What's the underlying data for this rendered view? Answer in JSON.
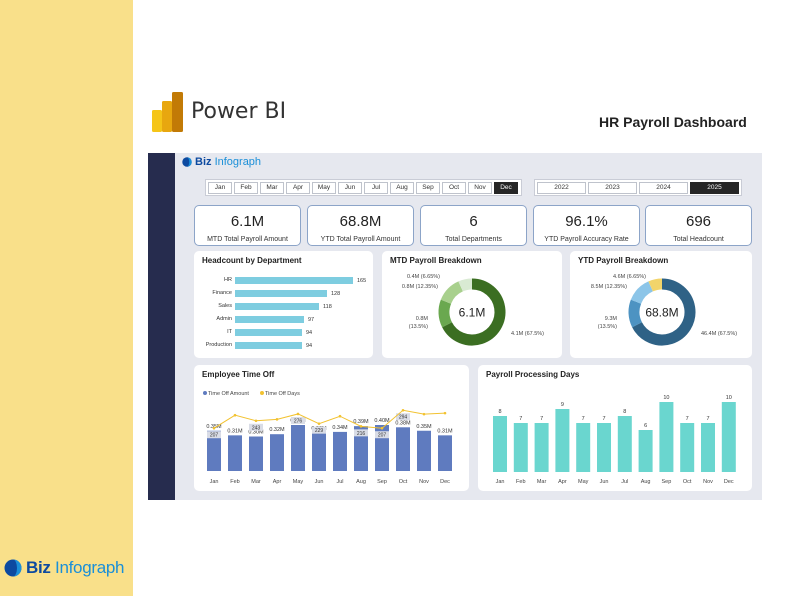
{
  "header": {
    "app_name": "Power BI",
    "dashboard_title": "HR Payroll Dashboard"
  },
  "brand": {
    "word1": "Biz",
    "word2": "Infograph"
  },
  "months": [
    "Jan",
    "Feb",
    "Mar",
    "Apr",
    "May",
    "Jun",
    "Jul",
    "Aug",
    "Sep",
    "Oct",
    "Nov",
    "Dec"
  ],
  "selected_month": "Dec",
  "years": [
    "2022",
    "2023",
    "2024",
    "2025"
  ],
  "selected_year": "2025",
  "kpis": [
    {
      "value": "6.1M",
      "label": "MTD Total Payroll Amount"
    },
    {
      "value": "68.8M",
      "label": "YTD Total Payroll Amount"
    },
    {
      "value": "6",
      "label": "Total Departments"
    },
    {
      "value": "96.1%",
      "label": "YTD Payroll Accuracy Rate"
    },
    {
      "value": "696",
      "label": "Total Headcount"
    }
  ],
  "headcount": {
    "title": "Headcount by Department",
    "items": [
      {
        "dept": "HR",
        "value": 165
      },
      {
        "dept": "Finance",
        "value": 128
      },
      {
        "dept": "Sales",
        "value": 118
      },
      {
        "dept": "Admin",
        "value": 97
      },
      {
        "dept": "IT",
        "value": 94
      },
      {
        "dept": "Production",
        "value": 94
      }
    ]
  },
  "mtd": {
    "title": "MTD Payroll Breakdown",
    "center": "6.1M",
    "labels": [
      "0.4M (6.65%)",
      "0.8M (12.35%)",
      "0.8M",
      "(13.5%)",
      "4.1M (67.5%)"
    ],
    "slices": [
      67.5,
      13.5,
      12.35,
      6.65
    ]
  },
  "ytd": {
    "title": "YTD Payroll Breakdown",
    "center": "68.8M",
    "labels": [
      "4.6M (6.65%)",
      "8.5M (12.35%)",
      "9.3M",
      "(13.5%)",
      "46.4M (67.5%)"
    ],
    "slices": [
      67.5,
      13.5,
      12.35,
      6.65
    ]
  },
  "timeoff": {
    "title": "Employee Time Off",
    "legend": [
      "Time Off Amount",
      "Time Off Days"
    ],
    "colors": {
      "bar": "#5f7bbf",
      "line": "#f2c230"
    },
    "amount_labels": [
      "0.35M",
      "0.31M",
      "0.30M",
      "0.32M",
      "0.40M",
      "0.33M",
      "0.34M",
      "0.39M",
      "0.40M",
      "0.38M",
      "0.35M",
      "0.31M"
    ],
    "amount_values": [
      0.35,
      0.31,
      0.3,
      0.32,
      0.4,
      0.33,
      0.34,
      0.39,
      0.4,
      0.38,
      0.35,
      0.31
    ],
    "day_labels": [
      "207",
      "",
      "243",
      "",
      "276",
      "229",
      "",
      "216",
      "207",
      "294",
      "",
      ""
    ],
    "day_values": [
      207,
      270,
      243,
      250,
      276,
      229,
      265,
      216,
      207,
      294,
      275,
      280
    ]
  },
  "processing": {
    "title": "Payroll Processing Days",
    "color": "#6ad6cf",
    "values": [
      8,
      7,
      7,
      9,
      7,
      7,
      8,
      6,
      10,
      7,
      7,
      10
    ]
  },
  "chart_data": [
    {
      "type": "bar",
      "title": "Headcount by Department",
      "categories": [
        "HR",
        "Finance",
        "Sales",
        "Admin",
        "IT",
        "Production"
      ],
      "values": [
        165,
        128,
        118,
        97,
        94,
        94
      ]
    },
    {
      "type": "pie",
      "title": "MTD Payroll Breakdown",
      "values": [
        4.1,
        0.8,
        0.8,
        0.4
      ],
      "percents": [
        67.5,
        13.5,
        12.35,
        6.65
      ]
    },
    {
      "type": "pie",
      "title": "YTD Payroll Breakdown",
      "values": [
        46.4,
        9.3,
        8.5,
        4.6
      ],
      "percents": [
        67.5,
        13.5,
        12.35,
        6.65
      ]
    },
    {
      "type": "bar",
      "title": "Employee Time Off",
      "categories": [
        "Jan",
        "Feb",
        "Mar",
        "Apr",
        "May",
        "Jun",
        "Jul",
        "Aug",
        "Sep",
        "Oct",
        "Nov",
        "Dec"
      ],
      "series": [
        {
          "name": "Time Off Amount",
          "values": [
            0.35,
            0.31,
            0.3,
            0.32,
            0.4,
            0.33,
            0.34,
            0.39,
            0.4,
            0.38,
            0.35,
            0.31
          ]
        },
        {
          "name": "Time Off Days",
          "values": [
            207,
            270,
            243,
            250,
            276,
            229,
            265,
            216,
            207,
            294,
            275,
            280
          ]
        }
      ]
    },
    {
      "type": "bar",
      "title": "Payroll Processing Days",
      "categories": [
        "Jan",
        "Feb",
        "Mar",
        "Apr",
        "May",
        "Jun",
        "Jul",
        "Aug",
        "Sep",
        "Oct",
        "Nov",
        "Dec"
      ],
      "values": [
        8,
        7,
        7,
        9,
        7,
        7,
        8,
        6,
        10,
        7,
        7,
        10
      ]
    }
  ]
}
